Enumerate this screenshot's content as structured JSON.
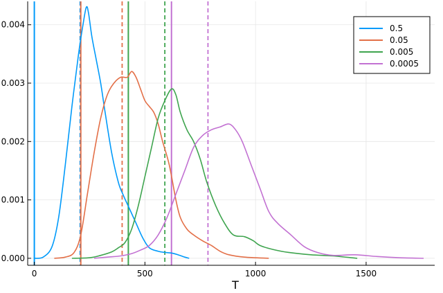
{
  "chart_data": {
    "type": "line",
    "title": "",
    "xlabel": "T",
    "ylabel": "",
    "xlim": [
      -30,
      1810
    ],
    "ylim": [
      -0.00012,
      0.0044
    ],
    "xticks": [
      0,
      500,
      1000,
      1500
    ],
    "xtick_labels": [
      "0",
      "500",
      "1000",
      "1500"
    ],
    "yticks": [
      0.0,
      0.001,
      0.002,
      0.003,
      0.004
    ],
    "ytick_labels": [
      "0.000",
      "0.001",
      "0.002",
      "0.003",
      "0.004"
    ],
    "grid": true,
    "legend": {
      "placement": "top-right"
    },
    "series": [
      {
        "name": "0.5",
        "color": "#009AFA",
        "solid_x": 0,
        "dashed_x": 207,
        "points": [
          [
            0,
            0.0
          ],
          [
            40,
            2e-05
          ],
          [
            80,
            0.0002
          ],
          [
            110,
            0.0007
          ],
          [
            140,
            0.0016
          ],
          [
            170,
            0.0026
          ],
          [
            200,
            0.0035
          ],
          [
            220,
            0.004
          ],
          [
            235,
            0.0043
          ],
          [
            245,
            0.0042
          ],
          [
            260,
            0.0038
          ],
          [
            280,
            0.0034
          ],
          [
            300,
            0.003
          ],
          [
            320,
            0.0025
          ],
          [
            350,
            0.0018
          ],
          [
            380,
            0.0013
          ],
          [
            400,
            0.0011
          ],
          [
            430,
            0.00085
          ],
          [
            460,
            0.0006
          ],
          [
            490,
            0.00035
          ],
          [
            520,
            0.00018
          ],
          [
            560,
            0.00012
          ],
          [
            590,
            0.0001
          ],
          [
            620,
            9e-05
          ],
          [
            650,
            6e-05
          ],
          [
            680,
            2e-05
          ],
          [
            700,
            0.0
          ]
        ]
      },
      {
        "name": "0.05",
        "color": "#E36F47",
        "solid_x": 210,
        "dashed_x": 397,
        "points": [
          [
            90,
            0.0
          ],
          [
            140,
            2e-05
          ],
          [
            180,
            0.0001
          ],
          [
            210,
            0.0004
          ],
          [
            240,
            0.0011
          ],
          [
            270,
            0.0018
          ],
          [
            300,
            0.0024
          ],
          [
            330,
            0.0028
          ],
          [
            360,
            0.003
          ],
          [
            390,
            0.0031
          ],
          [
            420,
            0.0031
          ],
          [
            440,
            0.0032
          ],
          [
            460,
            0.0031
          ],
          [
            480,
            0.0029
          ],
          [
            500,
            0.0027
          ],
          [
            520,
            0.0026
          ],
          [
            540,
            0.0025
          ],
          [
            560,
            0.0023
          ],
          [
            580,
            0.002
          ],
          [
            610,
            0.0016
          ],
          [
            640,
            0.001
          ],
          [
            660,
            0.0007
          ],
          [
            690,
            0.0005
          ],
          [
            720,
            0.0004
          ],
          [
            760,
            0.0003
          ],
          [
            800,
            0.00022
          ],
          [
            840,
            0.00012
          ],
          [
            880,
            6e-05
          ],
          [
            950,
            2e-05
          ],
          [
            1060,
            0.0
          ]
        ]
      },
      {
        "name": "0.005",
        "color": "#3EA44E",
        "solid_x": 425,
        "dashed_x": 590,
        "points": [
          [
            170,
            0.0
          ],
          [
            250,
            1e-05
          ],
          [
            300,
            5e-05
          ],
          [
            350,
            0.00011
          ],
          [
            380,
            0.00018
          ],
          [
            410,
            0.00027
          ],
          [
            440,
            0.0005
          ],
          [
            470,
            0.0009
          ],
          [
            500,
            0.0014
          ],
          [
            530,
            0.0019
          ],
          [
            560,
            0.0024
          ],
          [
            590,
            0.0027
          ],
          [
            620,
            0.0029
          ],
          [
            640,
            0.0028
          ],
          [
            660,
            0.0025
          ],
          [
            690,
            0.0022
          ],
          [
            720,
            0.002
          ],
          [
            750,
            0.0017
          ],
          [
            780,
            0.0013
          ],
          [
            820,
            0.0009
          ],
          [
            860,
            0.0006
          ],
          [
            900,
            0.0004
          ],
          [
            950,
            0.00037
          ],
          [
            990,
            0.0003
          ],
          [
            1020,
            0.00022
          ],
          [
            1080,
            0.00015
          ],
          [
            1150,
            0.0001
          ],
          [
            1250,
            6e-05
          ],
          [
            1350,
            4e-05
          ],
          [
            1460,
            0.0
          ]
        ]
      },
      {
        "name": "0.0005",
        "color": "#C271D2",
        "solid_x": 620,
        "dashed_x": 785,
        "points": [
          [
            270,
            0.0
          ],
          [
            330,
            2e-05
          ],
          [
            390,
            4e-05
          ],
          [
            440,
            8e-05
          ],
          [
            480,
            0.00014
          ],
          [
            520,
            0.00022
          ],
          [
            560,
            0.0004
          ],
          [
            600,
            0.0007
          ],
          [
            640,
            0.0011
          ],
          [
            680,
            0.0015
          ],
          [
            720,
            0.0019
          ],
          [
            760,
            0.0021
          ],
          [
            800,
            0.0022
          ],
          [
            840,
            0.00225
          ],
          [
            880,
            0.0023
          ],
          [
            910,
            0.0022
          ],
          [
            940,
            0.002
          ],
          [
            980,
            0.0016
          ],
          [
            1020,
            0.0012
          ],
          [
            1060,
            0.0008
          ],
          [
            1100,
            0.0006
          ],
          [
            1160,
            0.0004
          ],
          [
            1220,
            0.0002
          ],
          [
            1280,
            0.0001
          ],
          [
            1350,
            5e-05
          ],
          [
            1450,
            6e-05
          ],
          [
            1550,
            3e-05
          ],
          [
            1650,
            1e-05
          ],
          [
            1760,
            0.0
          ]
        ]
      }
    ]
  }
}
